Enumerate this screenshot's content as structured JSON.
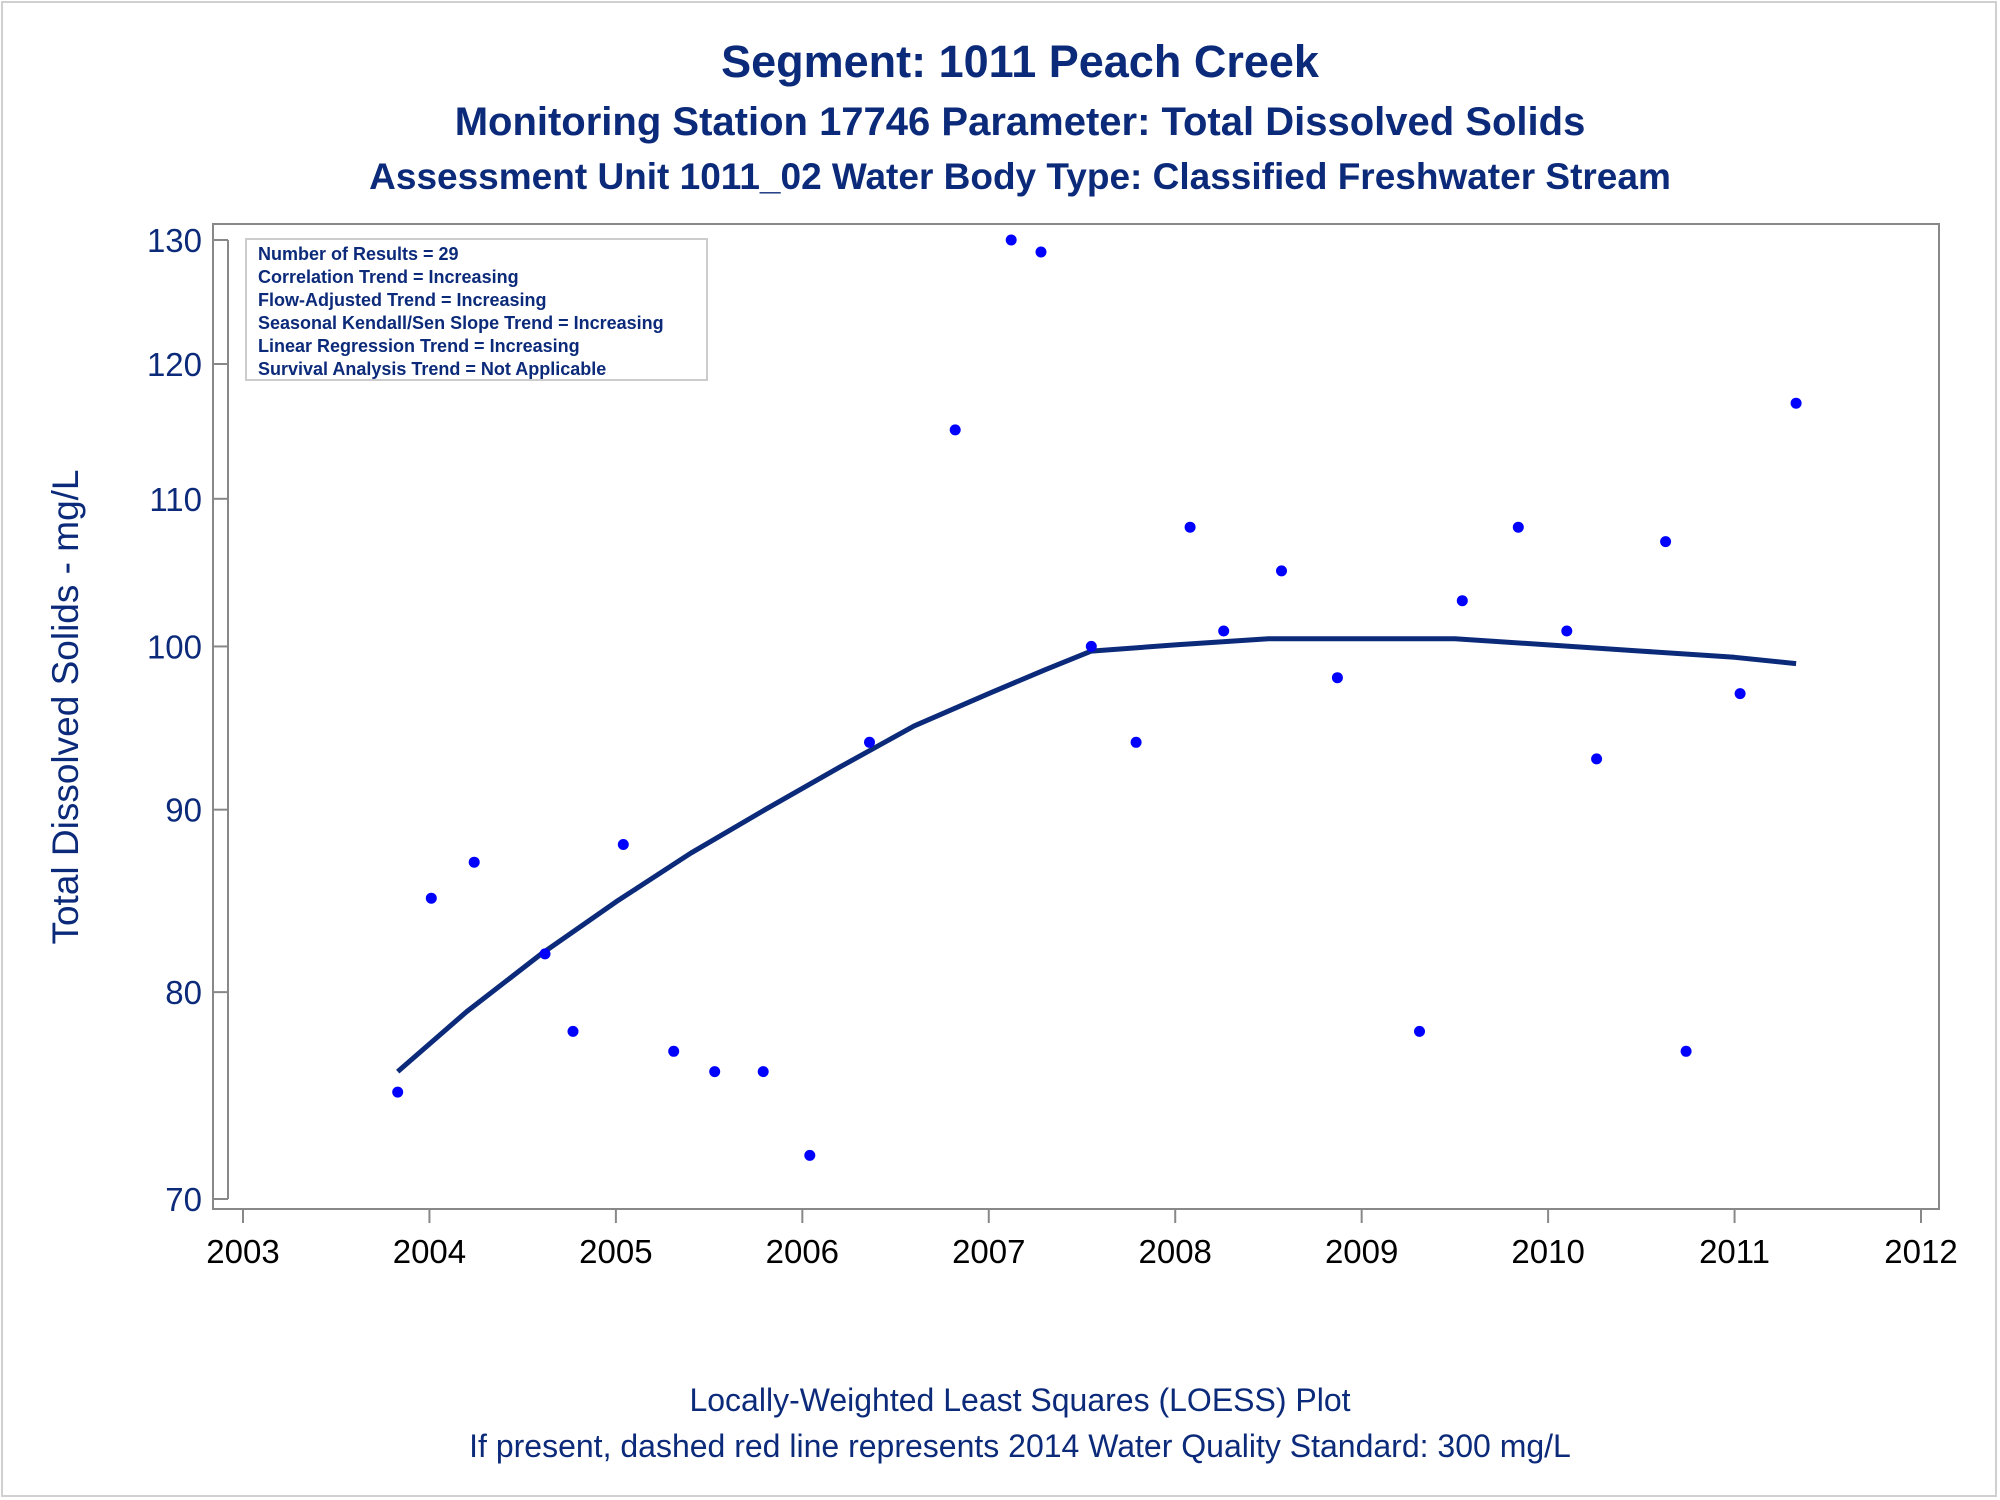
{
  "titles": {
    "line1": "Segment: 1011  Peach Creek",
    "line2": "Monitoring Station 17746 Parameter: Total Dissolved Solids",
    "line3": "Assessment Unit 1011_02   Water Body Type: Classified Freshwater Stream"
  },
  "footnotes": {
    "line1": "Locally-Weighted Least Squares (LOESS) Plot",
    "line2": "If present, dashed red line represents 2014 Water Quality Standard: 300   mg/L"
  },
  "info_box": [
    "Number of Results = 29",
    "Correlation Trend = Increasing",
    "Flow-Adjusted Trend = Increasing",
    "Seasonal Kendall/Sen Slope Trend = Increasing",
    "Linear Regression Trend = Increasing",
    "Survival Analysis Trend = Not Applicable"
  ],
  "colors": {
    "text": "#0c2a7a",
    "points": "#0000ff",
    "loess": "#0c2a7a",
    "axis": "#888888"
  },
  "chart_data": {
    "type": "scatter",
    "ylabel": "Total Dissolved Solids - mg/L",
    "xlabel": "",
    "y_scale": "log",
    "xlim": [
      2003,
      2012
    ],
    "ylim": [
      70,
      130
    ],
    "x_ticks": [
      "2003",
      "2004",
      "2005",
      "2006",
      "2007",
      "2008",
      "2009",
      "2010",
      "2011",
      "2012"
    ],
    "y_ticks": [
      "70",
      "80",
      "90",
      "100",
      "110",
      "120",
      "130"
    ],
    "series": [
      {
        "kind": "points",
        "x": [
          2003.83,
          2004.01,
          2004.24,
          2004.62,
          2004.77,
          2005.04,
          2005.31,
          2005.53,
          2005.79,
          2006.04,
          2006.36,
          2006.82,
          2007.12,
          2007.28,
          2007.55,
          2007.79,
          2008.08,
          2008.26,
          2008.57,
          2008.87,
          2009.31,
          2009.54,
          2009.84,
          2010.1,
          2010.26,
          2010.63,
          2010.74,
          2011.03,
          2011.33
        ],
        "y": [
          75,
          85,
          87,
          82,
          78,
          88,
          77,
          76,
          76,
          72,
          94,
          115,
          130,
          129,
          100,
          94,
          108,
          101,
          105,
          98,
          78,
          103,
          108,
          101,
          93,
          107,
          77,
          97,
          117
        ]
      },
      {
        "kind": "loess",
        "x": [
          2003.83,
          2004.2,
          2004.6,
          2005.0,
          2005.4,
          2005.8,
          2006.2,
          2006.6,
          2007.0,
          2007.3,
          2007.55,
          2008.0,
          2008.5,
          2009.0,
          2009.5,
          2010.0,
          2010.5,
          2011.0,
          2011.33
        ],
        "y": [
          76,
          79,
          82,
          84.8,
          87.5,
          90,
          92.5,
          95,
          97,
          98.5,
          99.7,
          100.1,
          100.5,
          100.5,
          100.5,
          100.1,
          99.7,
          99.3,
          98.9
        ]
      }
    ]
  }
}
